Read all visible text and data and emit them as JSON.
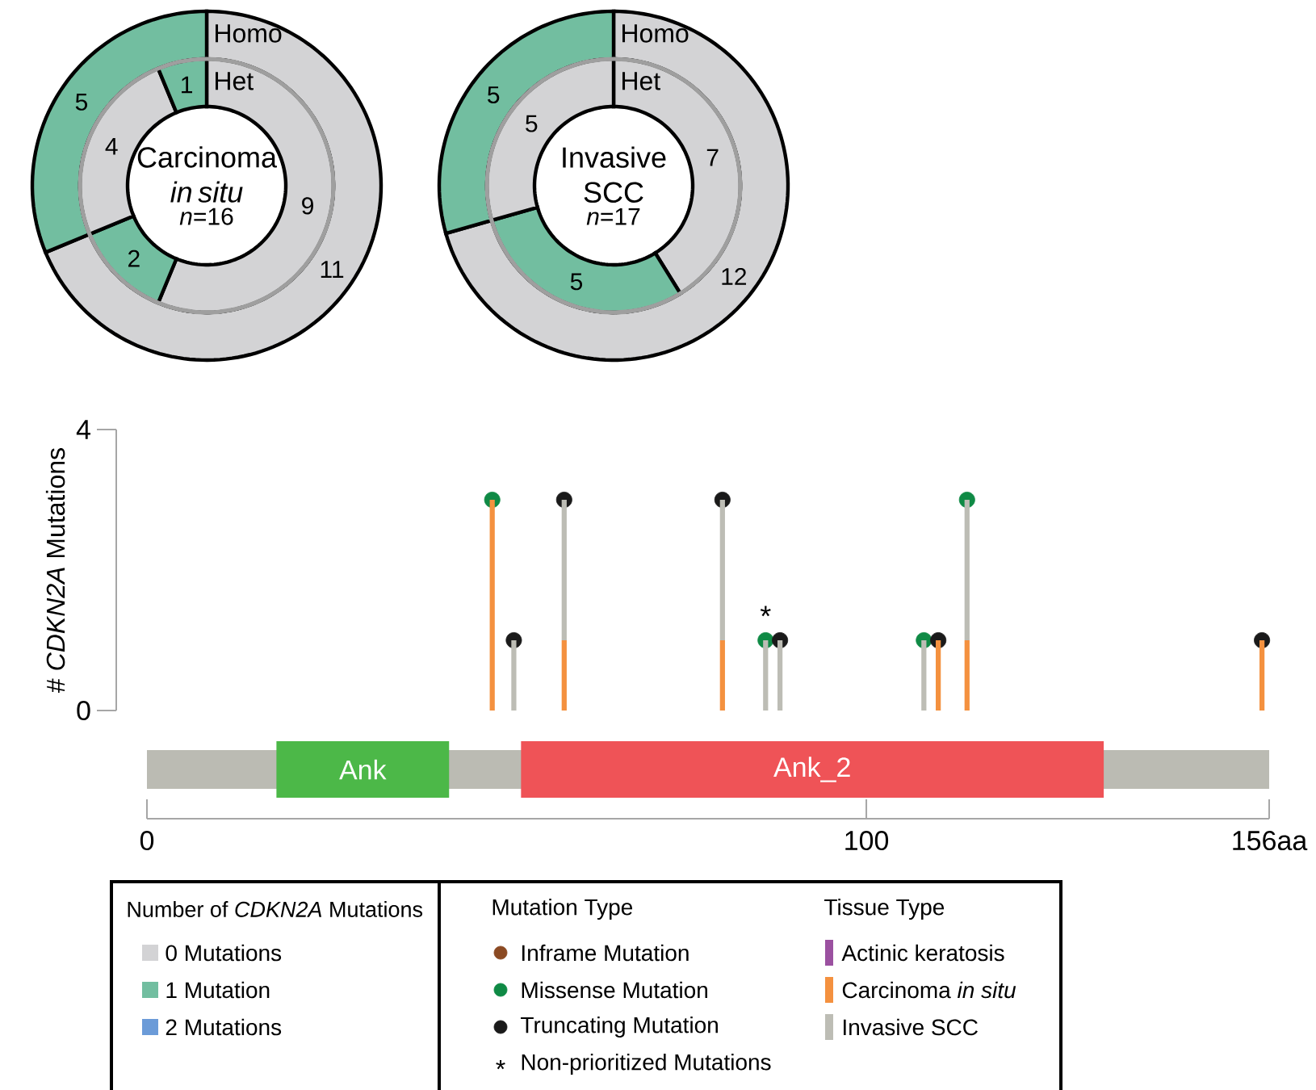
{
  "chart_data": [
    {
      "type": "donut",
      "title": "Carcinoma *in situ*",
      "subtitle": "*n*=16",
      "data_labels": true,
      "series": [
        {
          "name": "Homo",
          "values": [
            11,
            5
          ],
          "colors": [
            "#d3d3d5",
            "#72bea0"
          ]
        },
        {
          "name": "Het",
          "values": [
            9,
            2,
            4,
            1
          ],
          "colors": [
            "#d3d3d5",
            "#72bea0",
            "#d3d3d5",
            "#72bea0"
          ]
        }
      ]
    },
    {
      "type": "donut",
      "title": "Invasive SCC",
      "subtitle": "*n*=17",
      "data_labels": true,
      "series": [
        {
          "name": "Homo",
          "values": [
            12,
            5
          ],
          "colors": [
            "#d3d3d5",
            "#72bea0"
          ]
        },
        {
          "name": "Het",
          "values": [
            7,
            5,
            5
          ],
          "colors": [
            "#d3d3d5",
            "#72bea0",
            "#d3d3d5"
          ]
        }
      ]
    },
    {
      "type": "bar",
      "ylabel": "# *CDKN2A* Mutations",
      "stacked": true,
      "legend": "bottom",
      "legend_title": "Mutation Type",
      "tick_labels": "y",
      "x": [
        48,
        51,
        58,
        80,
        86,
        88,
        108,
        110,
        114,
        155
      ],
      "xlim": [
        0,
        156
      ],
      "ylim": [
        0,
        4
      ],
      "yticks": [
        0,
        4
      ],
      "annotations": [
        {
          "text": "*",
          "x": 86,
          "y": 1
        },
        "Non-prioritized Mutations",
        "Tissue Type"
      ],
      "series": [
        {
          "name": "Actinic keratosis",
          "color": "#9b51a0",
          "values": [
            null,
            null,
            null,
            null,
            null,
            null,
            null,
            null,
            null,
            null
          ]
        },
        {
          "name": "Carcinoma *in situ*",
          "color": "#f4913f",
          "values": [
            3,
            null,
            1,
            1,
            null,
            null,
            null,
            1,
            1,
            1
          ]
        },
        {
          "name": "Invasive SCC",
          "color": "#bdbdb5",
          "values": [
            null,
            1,
            2,
            2,
            1,
            1,
            1,
            null,
            2,
            null
          ]
        },
        {
          "name": "Inframe Mutation",
          "type": "scatter",
          "marker": "circle",
          "color": "#8b4a23",
          "values": [
            null,
            null,
            null,
            null,
            null,
            null,
            null,
            null,
            null,
            null
          ]
        },
        {
          "name": "Missense Mutation",
          "type": "scatter",
          "marker": "circle",
          "color": "#0f8a45",
          "x": [
            48,
            86,
            108,
            114
          ],
          "values": [
            3,
            1,
            1,
            3
          ]
        },
        {
          "name": "Truncating Mutation",
          "type": "scatter",
          "marker": "circle",
          "color": "#1a1a1a",
          "x": [
            51,
            58,
            80,
            88,
            110,
            155
          ],
          "values": [
            1,
            3,
            3,
            1,
            1,
            1
          ]
        }
      ]
    },
    {
      "type": "bar",
      "orientation": "horizontal",
      "categories": [
        null
      ],
      "tick_labels": "x",
      "xlim": [
        0,
        156
      ],
      "xticks": [
        0,
        100,
        {
          "value": 156,
          "label": "156aa"
        }
      ],
      "series": [
        {
          "color": "#bbbbb3",
          "values": [
            156
          ],
          "base": [
            0
          ]
        },
        {
          "name": "Ank",
          "color": "#4cb848",
          "values": [
            24
          ],
          "base": [
            18
          ]
        },
        {
          "name": "Ank_2",
          "color": "#ef5357",
          "values": [
            81
          ],
          "base": [
            52
          ]
        }
      ]
    },
    {
      "type": "other",
      "title": "Number of *CDKN2A* Mutations",
      "categories": [
        "0 Mutations",
        "1 Mutation",
        "2 Mutations"
      ],
      "colors": [
        "#d3d3d5",
        "#72bea0",
        "#6b9bd8"
      ]
    }
  ]
}
